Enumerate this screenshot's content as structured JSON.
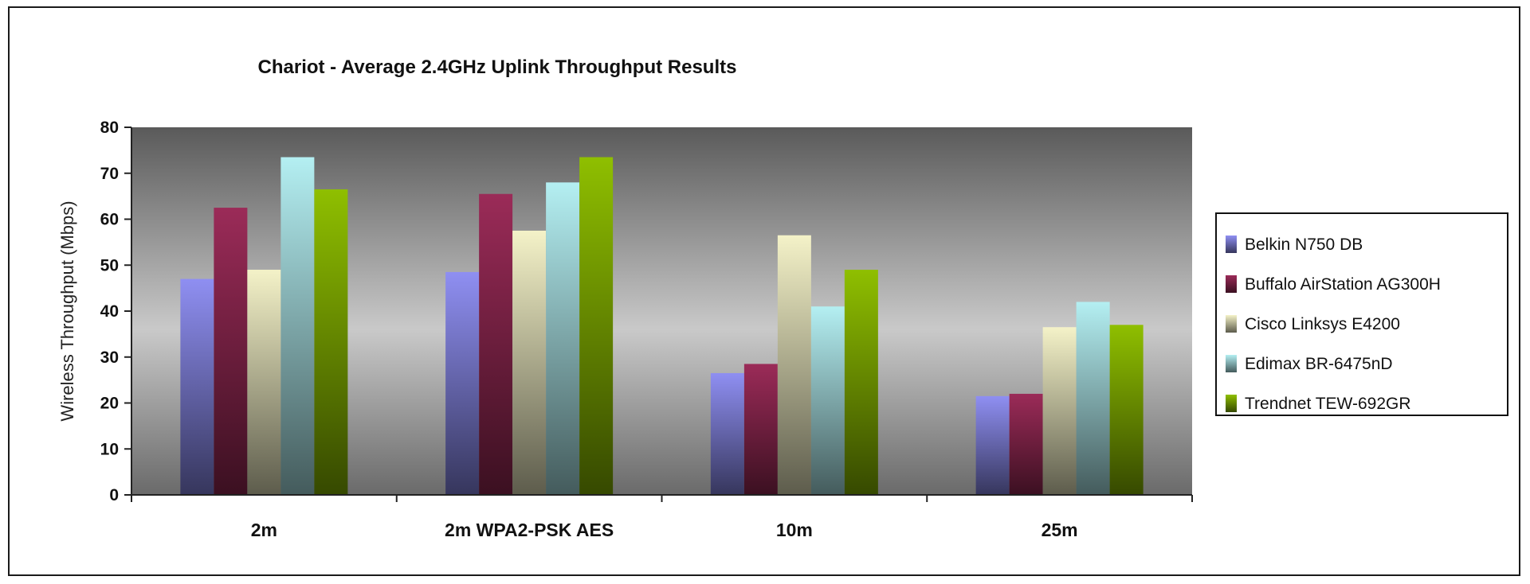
{
  "chart_data": {
    "type": "bar",
    "title": "Chariot - Average 2.4GHz Uplink Throughput Results",
    "xlabel": "",
    "ylabel": "Wireless Throughput (Mbps)",
    "ylim": [
      0,
      80
    ],
    "yticks": [
      0,
      10,
      20,
      30,
      40,
      50,
      60,
      70,
      80
    ],
    "grid": false,
    "legend": "right",
    "categories": [
      "2m",
      "2m WPA2-PSK AES",
      "10m",
      "25m"
    ],
    "series": [
      {
        "name": "Belkin N750 DB",
        "color": "#8f8ff2",
        "values": [
          47,
          48.5,
          26.5,
          21.5
        ]
      },
      {
        "name": "Buffalo AirStation AG300H",
        "color": "#9b2b58",
        "values": [
          62.5,
          65.5,
          28.5,
          22
        ]
      },
      {
        "name": "Cisco Linksys E4200",
        "color": "#f4f2c8",
        "values": [
          49,
          57.5,
          56.5,
          36.5
        ]
      },
      {
        "name": "Edimax BR-6475nD",
        "color": "#b4eff2",
        "values": [
          73.5,
          68,
          41,
          42
        ]
      },
      {
        "name": "Trendnet TEW-692GR",
        "color": "#8fbf00",
        "values": [
          66.5,
          73.5,
          49,
          37
        ]
      }
    ]
  }
}
